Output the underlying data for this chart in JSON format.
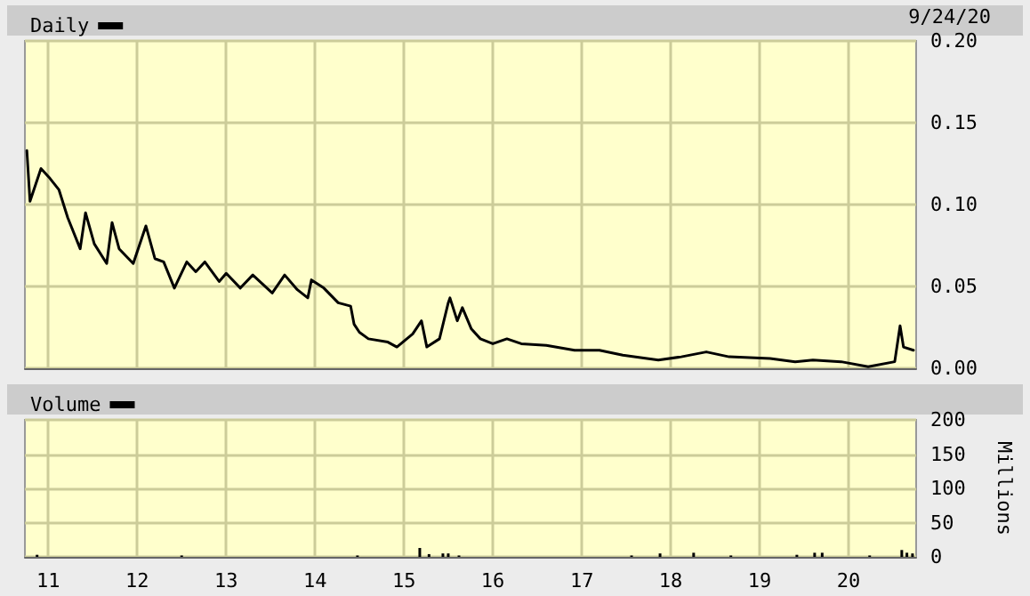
{
  "chart_data": [
    {
      "type": "line",
      "annotations": [
        "9/24/20"
      ],
      "legend": "top left",
      "grid": true,
      "tick_labels": "y",
      "marker": "none",
      "line_style": "solid",
      "xlim": [
        "2010-09-27",
        "2020-10-05"
      ],
      "xticks": [
        {
          "value": "2011-01-01",
          "label": null
        },
        {
          "value": "2012-01-01",
          "label": null
        },
        {
          "value": "2013-01-01",
          "label": null
        },
        {
          "value": "2014-01-01",
          "label": null
        },
        {
          "value": "2015-01-01",
          "label": null
        },
        {
          "value": "2016-01-01",
          "label": null
        },
        {
          "value": "2017-01-01",
          "label": null
        },
        {
          "value": "2018-01-01",
          "label": null
        },
        {
          "value": "2019-01-01",
          "label": null
        },
        {
          "value": "2020-01-01",
          "label": null
        }
      ],
      "ylim": [
        0,
        0.2
      ],
      "yticks": [
        {
          "value": 0,
          "label": "0.00"
        },
        {
          "value": 0.05,
          "label": "0.05"
        },
        {
          "value": 0.1,
          "label": "0.10"
        },
        {
          "value": 0.15,
          "label": "0.15"
        },
        {
          "value": 0.2,
          "label": "0.20"
        }
      ],
      "series": [
        {
          "name": "Daily",
          "color": "#000000",
          "x": [
            "2010-10-05",
            "2010-10-18",
            "2010-12-02",
            "2011-01-08",
            "2011-02-14",
            "2011-03-22",
            "2011-05-12",
            "2011-06-03",
            "2011-07-09",
            "2011-08-29",
            "2011-09-20",
            "2011-10-19",
            "2011-12-16",
            "2012-02-06",
            "2012-03-14",
            "2012-04-19",
            "2012-06-02",
            "2012-07-23",
            "2012-08-29",
            "2012-10-05",
            "2012-12-03",
            "2013-01-01",
            "2013-02-28",
            "2013-04-20",
            "2013-07-09",
            "2013-08-29",
            "2013-10-20",
            "2013-12-02",
            "2013-12-17",
            "2014-02-06",
            "2014-04-06",
            "2014-05-27",
            "2014-06-10",
            "2014-07-02",
            "2014-08-08",
            "2014-10-27",
            "2014-12-03",
            "2015-02-06",
            "2015-03-14",
            "2015-04-05",
            "2015-05-27",
            "2015-07-02",
            "2015-07-09",
            "2015-08-08",
            "2015-08-29",
            "2015-10-05",
            "2015-11-11",
            "2016-01-01",
            "2016-02-28",
            "2016-04-27",
            "2016-08-08",
            "2016-12-02",
            "2017-03-14",
            "2017-06-18",
            "2017-11-11",
            "2018-02-13",
            "2018-05-27",
            "2018-08-29",
            "2019-02-13",
            "2019-05-27",
            "2019-08-08",
            "2019-12-02",
            "2020-03-22",
            "2020-07-09",
            "2020-07-31",
            "2020-08-14",
            "2020-09-24"
          ],
          "values": [
            0.133,
            0.102,
            0.122,
            0.116,
            0.109,
            0.092,
            0.073,
            0.095,
            0.076,
            0.064,
            0.089,
            0.073,
            0.064,
            0.087,
            0.067,
            0.065,
            0.049,
            0.065,
            0.059,
            0.065,
            0.053,
            0.058,
            0.049,
            0.057,
            0.046,
            0.057,
            0.048,
            0.043,
            0.054,
            0.049,
            0.04,
            0.038,
            0.027,
            0.022,
            0.018,
            0.016,
            0.013,
            0.021,
            0.029,
            0.013,
            0.018,
            0.04,
            0.043,
            0.029,
            0.037,
            0.024,
            0.018,
            0.015,
            0.018,
            0.015,
            0.014,
            0.011,
            0.011,
            0.008,
            0.005,
            0.007,
            0.01,
            0.007,
            0.006,
            0.004,
            0.005,
            0.004,
            0.001,
            0.004,
            0.026,
            0.013,
            0.011
          ]
        }
      ]
    },
    {
      "type": "bar",
      "legend": "top left",
      "grid": true,
      "ylabel": "Millions",
      "xlim": [
        "2010-09-27",
        "2020-10-05"
      ],
      "xticks": [
        {
          "value": "2011-01-01",
          "label": "11"
        },
        {
          "value": "2012-01-01",
          "label": "12"
        },
        {
          "value": "2013-01-01",
          "label": "13"
        },
        {
          "value": "2014-01-01",
          "label": "14"
        },
        {
          "value": "2015-01-01",
          "label": "15"
        },
        {
          "value": "2016-01-01",
          "label": "16"
        },
        {
          "value": "2017-01-01",
          "label": "17"
        },
        {
          "value": "2018-01-01",
          "label": "18"
        },
        {
          "value": "2019-01-01",
          "label": "19"
        },
        {
          "value": "2020-01-01",
          "label": "20"
        }
      ],
      "ylim": [
        0,
        200
      ],
      "yticks": [
        0,
        50,
        100,
        150,
        200
      ],
      "series": [
        {
          "name": "Volume",
          "color": "#000000",
          "x": [
            "2010-11-16",
            "2012-07-02",
            "2014-06-24",
            "2015-03-07",
            "2015-04-14",
            "2015-06-10",
            "2015-07-02",
            "2015-08-15",
            "2017-07-24",
            "2017-11-18",
            "2018-04-05",
            "2018-09-05",
            "2019-06-03",
            "2019-08-15",
            "2019-09-15",
            "2020-03-28",
            "2020-08-07",
            "2020-08-28",
            "2020-09-20"
          ],
          "values": [
            3,
            2,
            2,
            13,
            4,
            5,
            5,
            2,
            2,
            5,
            6,
            2,
            3,
            6,
            6,
            2,
            10,
            6,
            5
          ]
        }
      ]
    }
  ]
}
